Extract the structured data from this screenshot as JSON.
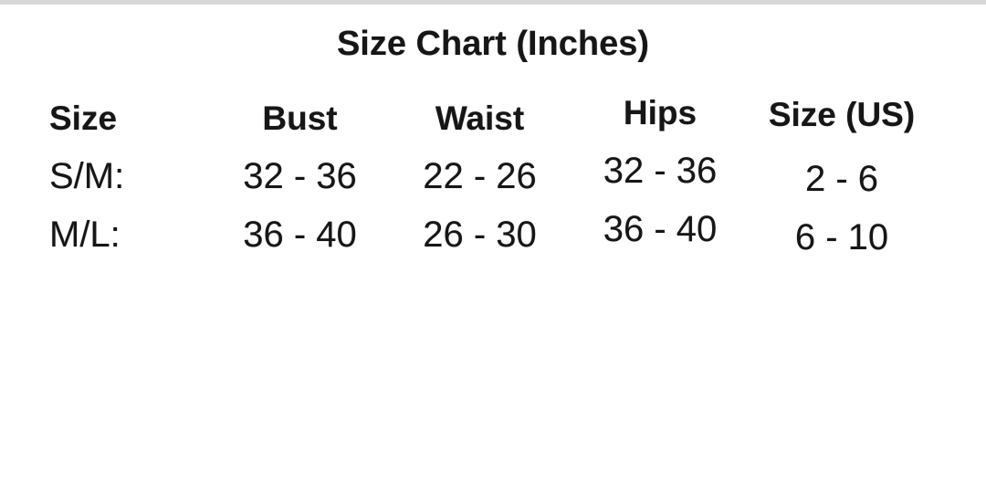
{
  "colors": {
    "background": "#ffffff",
    "top_strip": "#d8d8d8",
    "text": "#161616"
  },
  "chart_data": {
    "type": "table",
    "title": "Size Chart (Inches)",
    "units": "inches",
    "columns": [
      "Size",
      "Bust",
      "Waist",
      "Hips",
      "Size (US)"
    ],
    "rows": [
      [
        "S/M:",
        "32 - 36",
        "22 - 26",
        "32 - 36",
        "2 - 6"
      ],
      [
        "M/L:",
        "36 - 40",
        "26 - 30",
        "36 - 40",
        "6 - 10"
      ]
    ]
  }
}
